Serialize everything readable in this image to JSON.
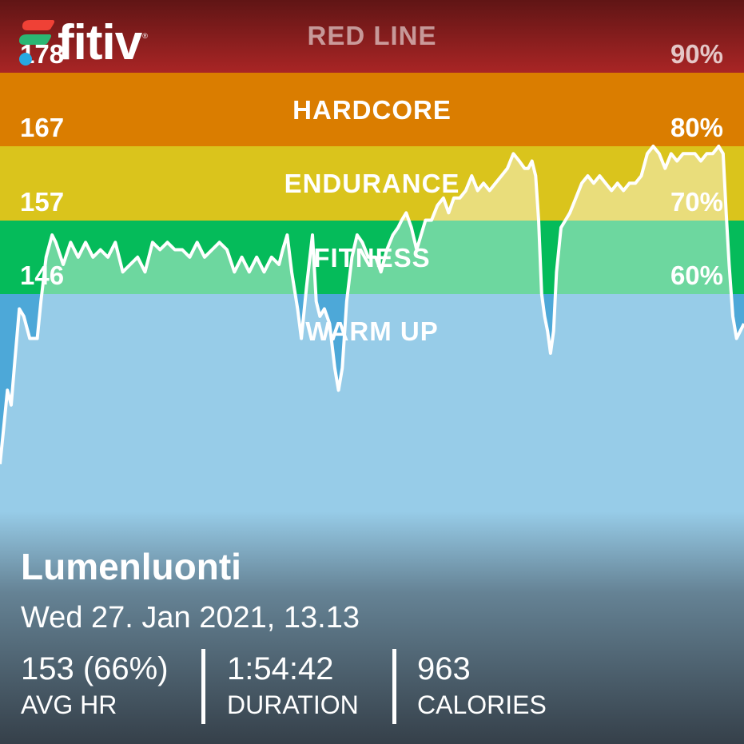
{
  "brand": {
    "name": "fitiv",
    "registered": "®",
    "colors": {
      "red": "#ef4136",
      "green": "#2bb673",
      "blue": "#27aae1"
    }
  },
  "chart_data": {
    "type": "area",
    "zones": [
      {
        "name": "RED LINE",
        "color": "#a92525",
        "color_top": "#601515",
        "from_pct": 90,
        "to_pct": 100,
        "hr_threshold": "178",
        "pct_label": "90%"
      },
      {
        "name": "HARDCORE",
        "color": "#da7d00",
        "from_pct": 80,
        "to_pct": 90,
        "hr_threshold": "167",
        "pct_label": "80%"
      },
      {
        "name": "ENDURANCE",
        "color": "#dac41c",
        "from_pct": 70,
        "to_pct": 80,
        "hr_threshold": "157",
        "pct_label": "70%"
      },
      {
        "name": "FITNESS",
        "color": "#05bb5a",
        "from_pct": 60,
        "to_pct": 70,
        "hr_threshold": "146",
        "pct_label": "60%"
      },
      {
        "name": "WARM UP",
        "color": "#4da8d8",
        "from_pct": 30,
        "to_pct": 60,
        "hr_threshold": "",
        "pct_label": ""
      }
    ],
    "ylim_pct": [
      30,
      100
    ],
    "xlim": [
      0,
      100
    ],
    "series": [
      {
        "line_color": "#ffffff",
        "points": [
          [
            0,
            37
          ],
          [
            0.5,
            42
          ],
          [
            1,
            47
          ],
          [
            1.5,
            45
          ],
          [
            2,
            51
          ],
          [
            2.6,
            58
          ],
          [
            3.2,
            57
          ],
          [
            4,
            54
          ],
          [
            5,
            54
          ],
          [
            5.5,
            59
          ],
          [
            6.2,
            65
          ],
          [
            7,
            68
          ],
          [
            7.5,
            67
          ],
          [
            8.5,
            64
          ],
          [
            9.5,
            67
          ],
          [
            10.5,
            65
          ],
          [
            11.5,
            67
          ],
          [
            12.5,
            65
          ],
          [
            13.5,
            66
          ],
          [
            14.5,
            65
          ],
          [
            15.5,
            67
          ],
          [
            16.5,
            63
          ],
          [
            17.5,
            64
          ],
          [
            18.5,
            65
          ],
          [
            19.5,
            63
          ],
          [
            20.5,
            67
          ],
          [
            21.5,
            66
          ],
          [
            22.5,
            67
          ],
          [
            23.5,
            66
          ],
          [
            24.5,
            66
          ],
          [
            25.5,
            65
          ],
          [
            26.5,
            67
          ],
          [
            27.5,
            65
          ],
          [
            28.5,
            66
          ],
          [
            29.5,
            67
          ],
          [
            30.5,
            66
          ],
          [
            31.5,
            63
          ],
          [
            32.5,
            65
          ],
          [
            33.5,
            63
          ],
          [
            34.5,
            65
          ],
          [
            35.5,
            63
          ],
          [
            36.5,
            65
          ],
          [
            37.5,
            64
          ],
          [
            38,
            66
          ],
          [
            38.6,
            68
          ],
          [
            39.2,
            63
          ],
          [
            40,
            58
          ],
          [
            40.5,
            54
          ],
          [
            41.2,
            61
          ],
          [
            42,
            68
          ],
          [
            42.5,
            59
          ],
          [
            43,
            57
          ],
          [
            43.6,
            58
          ],
          [
            44.3,
            56
          ],
          [
            45,
            50
          ],
          [
            45.5,
            47
          ],
          [
            46,
            50
          ],
          [
            46.6,
            59
          ],
          [
            47.3,
            65
          ],
          [
            48,
            68
          ],
          [
            48.7,
            67
          ],
          [
            49.5,
            65
          ],
          [
            50.5,
            65
          ],
          [
            51.2,
            63
          ],
          [
            52,
            66
          ],
          [
            52.8,
            68
          ],
          [
            53.5,
            69
          ],
          [
            54,
            70
          ],
          [
            54.6,
            71
          ],
          [
            55.3,
            69
          ],
          [
            56,
            66
          ],
          [
            56.6,
            68
          ],
          [
            57.2,
            70
          ],
          [
            58,
            70
          ],
          [
            58.8,
            72
          ],
          [
            59.6,
            73
          ],
          [
            60.3,
            71
          ],
          [
            61,
            73
          ],
          [
            61.8,
            73
          ],
          [
            62.6,
            74
          ],
          [
            63.4,
            76
          ],
          [
            64.2,
            74
          ],
          [
            65,
            75
          ],
          [
            65.8,
            74
          ],
          [
            66.6,
            75
          ],
          [
            67.4,
            76
          ],
          [
            68.2,
            77
          ],
          [
            69,
            79
          ],
          [
            69.8,
            78
          ],
          [
            70.5,
            77
          ],
          [
            71,
            77
          ],
          [
            71.5,
            78
          ],
          [
            72,
            76
          ],
          [
            72.4,
            70
          ],
          [
            72.8,
            60
          ],
          [
            73.2,
            57
          ],
          [
            73.6,
            55
          ],
          [
            74,
            52
          ],
          [
            74.4,
            55
          ],
          [
            74.8,
            63
          ],
          [
            75.4,
            69
          ],
          [
            76,
            70
          ],
          [
            76.6,
            71
          ],
          [
            77.4,
            73
          ],
          [
            78.2,
            75
          ],
          [
            79,
            76
          ],
          [
            79.8,
            75
          ],
          [
            80.6,
            76
          ],
          [
            81.4,
            75
          ],
          [
            82.2,
            74
          ],
          [
            83,
            75
          ],
          [
            83.8,
            74
          ],
          [
            84.6,
            75
          ],
          [
            85.4,
            75
          ],
          [
            86.2,
            76
          ],
          [
            87,
            79
          ],
          [
            87.8,
            80
          ],
          [
            88.6,
            79
          ],
          [
            89.4,
            77
          ],
          [
            90.2,
            79
          ],
          [
            91,
            78
          ],
          [
            91.8,
            79
          ],
          [
            92.6,
            79
          ],
          [
            93.4,
            79
          ],
          [
            94.2,
            78
          ],
          [
            95,
            79
          ],
          [
            95.8,
            79
          ],
          [
            96.6,
            80
          ],
          [
            97.2,
            79
          ],
          [
            97.6,
            71
          ],
          [
            98,
            64
          ],
          [
            98.5,
            57
          ],
          [
            99,
            54
          ],
          [
            99.5,
            55
          ],
          [
            100,
            56
          ]
        ]
      }
    ]
  },
  "workout": {
    "title": "Lumenluonti",
    "date": "Wed 27. Jan 2021, 13.13",
    "stats": [
      {
        "value": "153 (66%)",
        "label": "AVG HR"
      },
      {
        "value": "1:54:42",
        "label": "DURATION"
      },
      {
        "value": "963",
        "label": "CALORIES"
      }
    ]
  }
}
